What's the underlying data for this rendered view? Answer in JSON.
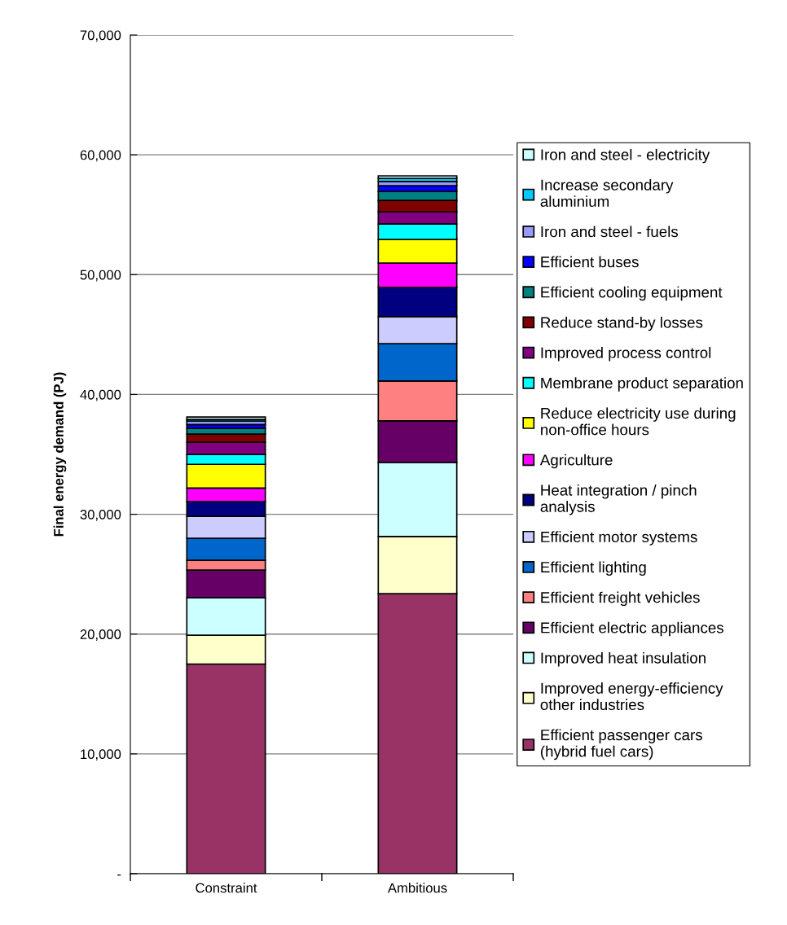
{
  "chart_data": {
    "type": "bar",
    "stacked": true,
    "ylabel": "Final energy demand (PJ)",
    "categories": [
      "Constraint",
      "Ambitious"
    ],
    "ylim": [
      0,
      70000
    ],
    "yticks": [
      {
        "value": 0,
        "label": "-"
      },
      {
        "value": 10000,
        "label": "10,000"
      },
      {
        "value": 20000,
        "label": "20,000"
      },
      {
        "value": 30000,
        "label": "30,000"
      },
      {
        "value": 40000,
        "label": "40,000"
      },
      {
        "value": 50000,
        "label": "50,000"
      },
      {
        "value": 60000,
        "label": "60,000"
      },
      {
        "value": 70000,
        "label": "70,000"
      }
    ],
    "grid": "y",
    "legend": "right",
    "series": [
      {
        "name": "Efficient passenger cars\n(hybrid fuel cars)",
        "color": "#993366",
        "values": [
          17500,
          23380
        ]
      },
      {
        "name": "Improved energy-efficiency\nother industries",
        "color": "#ffffcc",
        "values": [
          2400,
          4760
        ]
      },
      {
        "name": "Improved heat insulation",
        "color": "#ccffff",
        "values": [
          3130,
          6180
        ]
      },
      {
        "name": "Efficient electric appliances",
        "color": "#660066",
        "values": [
          2310,
          3470
        ]
      },
      {
        "name": "Efficient freight vehicles",
        "color": "#ff8080",
        "values": [
          820,
          3330
        ]
      },
      {
        "name": "Efficient lighting",
        "color": "#0066cc",
        "values": [
          1830,
          3120
        ]
      },
      {
        "name": "Efficient motor systems",
        "color": "#ccccff",
        "values": [
          1840,
          2250
        ]
      },
      {
        "name": "Heat integration / pinch\nanalysis",
        "color": "#000080",
        "values": [
          1220,
          2440
        ]
      },
      {
        "name": "Agriculture",
        "color": "#ff00ff",
        "values": [
          1140,
          2040
        ]
      },
      {
        "name": "Reduce electricity use during\nnon-office hours",
        "color": "#ffff00",
        "values": [
          1980,
          1970
        ]
      },
      {
        "name": "Membrane product separation",
        "color": "#00ffff",
        "values": [
          820,
          1290
        ]
      },
      {
        "name": "Improved process control",
        "color": "#800080",
        "values": [
          1020,
          1020
        ]
      },
      {
        "name": "Reduce stand-by losses",
        "color": "#800000",
        "values": [
          680,
          950
        ]
      },
      {
        "name": "Efficient cooling equipment",
        "color": "#008080",
        "values": [
          480,
          750
        ]
      },
      {
        "name": "Efficient buses",
        "color": "#0000ff",
        "values": [
          320,
          480
        ]
      },
      {
        "name": "Iron and steel - fuels",
        "color": "#9999ff",
        "values": [
          290,
          340
        ]
      },
      {
        "name": "Increase secondary\naluminium",
        "color": "#00ccff",
        "values": [
          130,
          270
        ]
      },
      {
        "name": "Iron and steel - electricity",
        "color": "#ccffff",
        "values": [
          210,
          200
        ]
      }
    ]
  }
}
